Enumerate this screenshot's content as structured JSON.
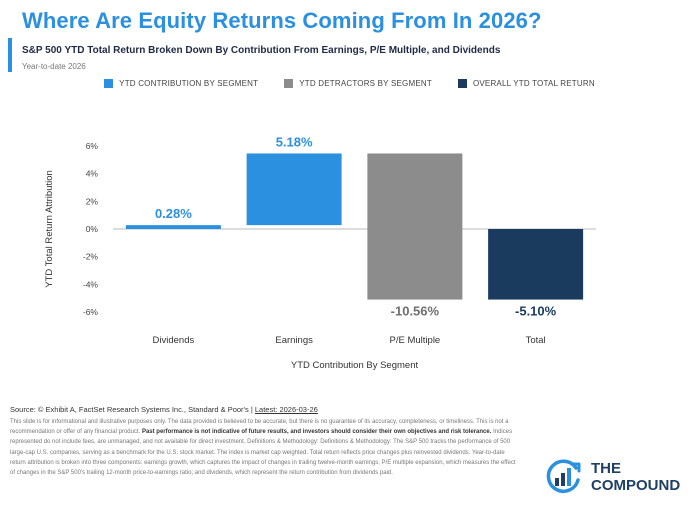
{
  "header": {
    "title": "Where Are Equity Returns Coming From In 2026?",
    "subtitle": "S&P 500 YTD Total Return Broken Down By Contribution From Earnings, P/E Multiple, and Dividends",
    "period": "Year-to-date 2026"
  },
  "legend": [
    {
      "label": "YTD CONTRIBUTION BY SEGMENT",
      "color": "#2b90e0"
    },
    {
      "label": "YTD DETRACTORS BY SEGMENT",
      "color": "#8c8c8c"
    },
    {
      "label": "OVERALL YTD TOTAL RETURN",
      "color": "#1a3a5e"
    }
  ],
  "chart_data": {
    "type": "bar",
    "subtype": "waterfall",
    "categories": [
      "Dividends",
      "Earnings",
      "P/E Multiple",
      "Total"
    ],
    "values": [
      0.28,
      5.18,
      -10.56,
      -5.1
    ],
    "data_labels": [
      "0.28%",
      "5.18%",
      "-10.56%",
      "-5.10%"
    ],
    "bar_colors": [
      "#2b90e0",
      "#2b90e0",
      "#8c8c8c",
      "#1a3a5e"
    ],
    "label_colors": [
      "#2b90e0",
      "#2b90e0",
      "#6f6f6f",
      "#1a3a5e"
    ],
    "ylim": [
      -6,
      6
    ],
    "yticks": [
      6,
      4,
      2,
      0,
      -2,
      -4,
      -6
    ],
    "ytick_labels": [
      "6%",
      "4%",
      "2%",
      "0%",
      "-2%",
      "-4%",
      "-6%"
    ],
    "xlabel": "YTD Contribution By Segment",
    "ylabel": "YTD Total Return Attribution",
    "grid": false,
    "legend_position": "top"
  },
  "footer": {
    "source": "Source: © Exhibit A, FactSet Research Systems Inc., Standard & Poor's |",
    "latest": "Latest: 2026-03-26",
    "disclaimer_a": "This slide is for informational and illustrative purposes only. The data provided is believed to be accurate, but there is no guarantee of its accuracy, completeness, or timeliness. This is not a recommendation or offer of any financial product.",
    "disclaimer_bold": "Past performance is not indicative of future results, and investors should consider their own objectives and risk tolerance.",
    "disclaimer_b": "Indices represented do not include fees, are unmanaged, and not available for direct investment. Definitions & Methodology: Definitions & Methodology: The S&P 500 tracks the performance of 500 large-cap U.S. companies, serving as a benchmark for the U.S. stock market. The index is market cap weighted. Total return reflects price changes plus reinvested dividends. Year-to-date return attribution is broken into three components: earnings growth, which captures the impact of changes in trailing twelve-month earnings; P/E multiple expansion, which measures the effect of changes in the S&P 500's trailing 12-month price-to-earnings ratio; and dividends, which represent the return contribution from dividends paid."
  },
  "brand": {
    "line1": "THE",
    "line2": "COMPOUND"
  }
}
